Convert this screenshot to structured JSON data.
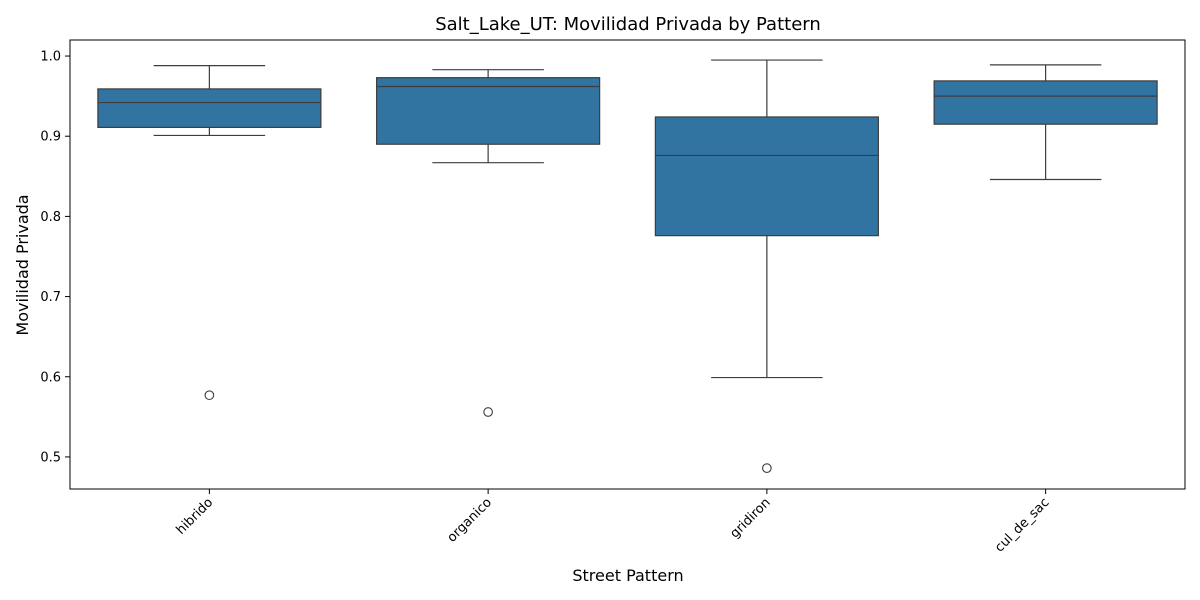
{
  "chart_data": {
    "type": "box",
    "title": "Salt_Lake_UT: Movilidad Privada by Pattern",
    "xlabel": "Street Pattern",
    "ylabel": "Movilidad Privada",
    "ylim": [
      0.46,
      1.02
    ],
    "yticks": [
      0.5,
      0.6,
      0.7,
      0.8,
      0.9,
      1.0
    ],
    "ytick_labels": [
      "0.5",
      "0.6",
      "0.7",
      "0.8",
      "0.9",
      "1.0"
    ],
    "categories": [
      "hibrido",
      "organico",
      "gridiron",
      "cul_de_sac"
    ],
    "series": [
      {
        "category": "hibrido",
        "whisker_low": 0.901,
        "q1": 0.911,
        "median": 0.942,
        "q3": 0.959,
        "whisker_high": 0.988,
        "outliers": [
          0.577
        ]
      },
      {
        "category": "organico",
        "whisker_low": 0.867,
        "q1": 0.89,
        "median": 0.962,
        "q3": 0.973,
        "whisker_high": 0.983,
        "outliers": [
          0.556
        ]
      },
      {
        "category": "gridiron",
        "whisker_low": 0.599,
        "q1": 0.776,
        "median": 0.876,
        "q3": 0.924,
        "whisker_high": 0.995,
        "outliers": [
          0.486
        ]
      },
      {
        "category": "cul_de_sac",
        "whisker_low": 0.846,
        "q1": 0.915,
        "median": 0.95,
        "q3": 0.969,
        "whisker_high": 0.989,
        "outliers": []
      }
    ],
    "box_color": "#3274a1",
    "line_color": "#3d3d3d",
    "grid": false,
    "legend": "none"
  }
}
